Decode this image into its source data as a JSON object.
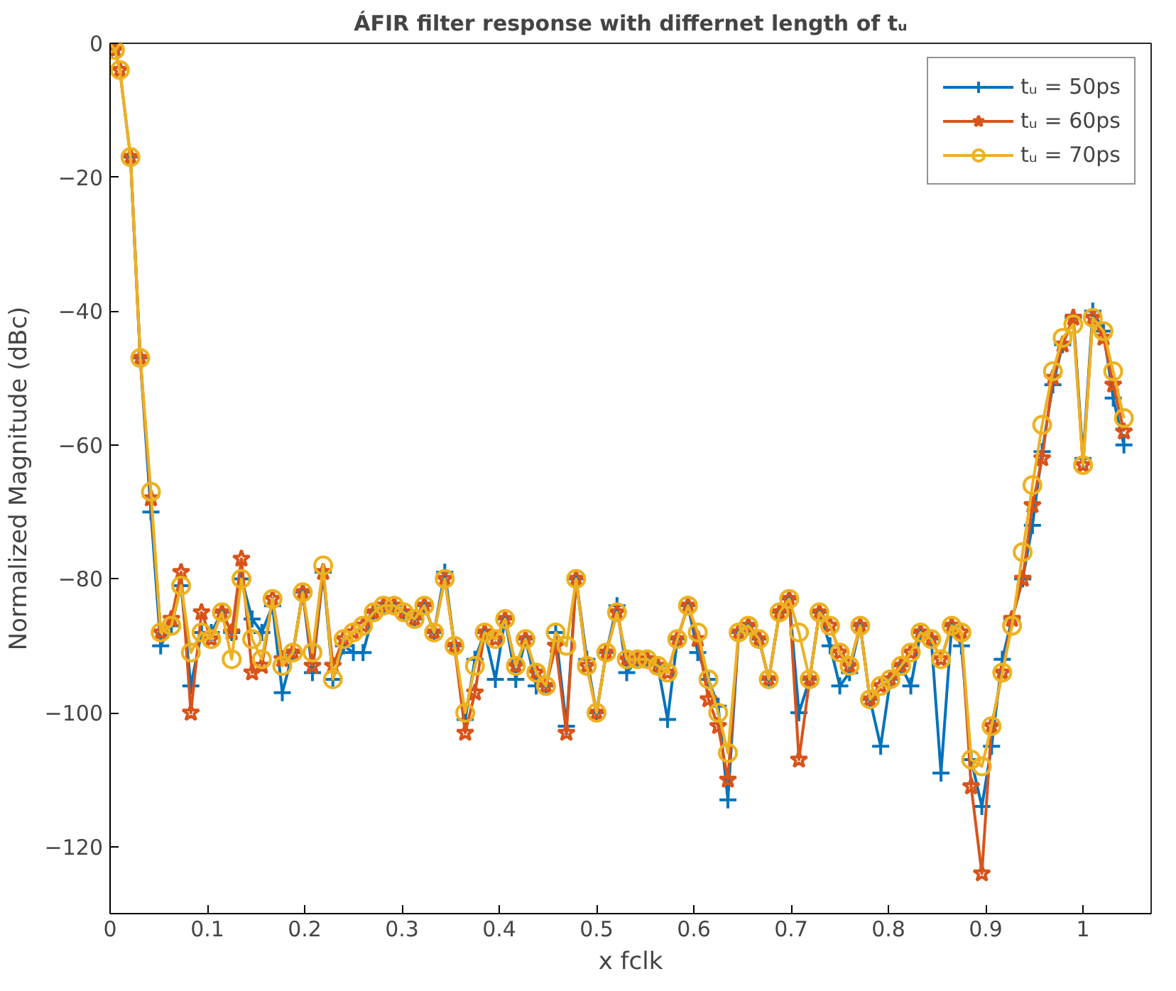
{
  "chart_data": {
    "type": "line",
    "title": "ÁFIR filter response with differnet length of tᵤ",
    "xlabel": "x fclk",
    "ylabel": "Normalized Magnitude (dBc)",
    "x": [
      0,
      0.005,
      0.01,
      0.021,
      0.031,
      0.042,
      0.052,
      0.063,
      0.073,
      0.083,
      0.094,
      0.104,
      0.115,
      0.125,
      0.135,
      0.146,
      0.156,
      0.167,
      0.177,
      0.188,
      0.198,
      0.208,
      0.219,
      0.229,
      0.24,
      0.25,
      0.26,
      0.271,
      0.281,
      0.292,
      0.302,
      0.313,
      0.323,
      0.333,
      0.344,
      0.354,
      0.365,
      0.375,
      0.385,
      0.396,
      0.406,
      0.417,
      0.427,
      0.438,
      0.448,
      0.458,
      0.469,
      0.479,
      0.49,
      0.5,
      0.51,
      0.521,
      0.531,
      0.542,
      0.552,
      0.563,
      0.573,
      0.583,
      0.594,
      0.604,
      0.615,
      0.625,
      0.635,
      0.646,
      0.656,
      0.667,
      0.677,
      0.688,
      0.698,
      0.708,
      0.719,
      0.729,
      0.74,
      0.75,
      0.76,
      0.771,
      0.781,
      0.792,
      0.802,
      0.813,
      0.823,
      0.833,
      0.844,
      0.854,
      0.865,
      0.875,
      0.885,
      0.896,
      0.906,
      0.917,
      0.927,
      0.938,
      0.948,
      0.958,
      0.969,
      0.979,
      0.99,
      1.0,
      1.01,
      1.021,
      1.031,
      1.042
    ],
    "series": [
      {
        "name": "tᵤ = 50ps",
        "color": "#0072bd",
        "marker": "cross",
        "x": [
          0.021,
          0.031,
          0.042,
          0.052,
          0.063,
          0.073,
          0.083,
          0.094,
          0.104,
          0.115,
          0.125,
          0.135,
          0.146,
          0.156,
          0.167,
          0.177,
          0.188,
          0.198,
          0.208,
          0.219,
          0.229,
          0.24,
          0.25,
          0.26,
          0.271,
          0.281,
          0.292,
          0.302,
          0.313,
          0.323,
          0.333,
          0.344,
          0.354,
          0.365,
          0.375,
          0.385,
          0.396,
          0.406,
          0.417,
          0.427,
          0.438,
          0.448,
          0.458,
          0.469,
          0.479,
          0.49,
          0.5,
          0.51,
          0.521,
          0.531,
          0.542,
          0.552,
          0.563,
          0.573,
          0.583,
          0.594,
          0.604,
          0.615,
          0.625,
          0.635,
          0.646,
          0.656,
          0.667,
          0.677,
          0.688,
          0.698,
          0.708,
          0.719,
          0.729,
          0.74,
          0.75,
          0.76,
          0.771,
          0.781,
          0.792,
          0.802,
          0.813,
          0.823,
          0.833,
          0.844,
          0.854,
          0.865,
          0.875,
          0.885,
          0.896,
          0.906,
          0.917,
          0.927,
          0.938,
          0.948,
          0.958,
          0.969,
          0.979,
          0.99,
          1.0,
          1.01,
          1.021,
          1.031,
          1.042
        ],
        "values": [
          -17,
          -47,
          -70,
          -90,
          -87,
          -81,
          -96,
          -88,
          -88,
          -85,
          -88,
          -80,
          -86,
          -88,
          -84,
          -97,
          -91,
          -82,
          -94,
          -79,
          -95,
          -90,
          -91,
          -91,
          -85,
          -84,
          -84,
          -85,
          -86,
          -84,
          -88,
          -79,
          -90,
          -101,
          -92,
          -88,
          -95,
          -86,
          -95,
          -89,
          -96,
          -96,
          -88,
          -102,
          -80,
          -92,
          -100,
          -91,
          -84,
          -94,
          -92,
          -92,
          -93,
          -101,
          -89,
          -84,
          -91,
          -95,
          -99,
          -113,
          -88,
          -87,
          -89,
          -95,
          -85,
          -83,
          -100,
          -95,
          -85,
          -90,
          -96,
          -94,
          -87,
          -98,
          -105,
          -95,
          -93,
          -96,
          -88,
          -89,
          -109,
          -87,
          -90,
          -107,
          -114,
          -105,
          -92,
          -86,
          -80,
          -72,
          -61,
          -51,
          -45,
          -41,
          -62,
          -40,
          -43,
          -53,
          -60
        ]
      },
      {
        "name": "tᵤ = 60ps",
        "color": "#d95319",
        "marker": "star",
        "values": [
          0,
          -1,
          -4,
          -17,
          -47,
          -68,
          -88,
          -86,
          -79,
          -100,
          -85,
          -89,
          -85,
          -88,
          -77,
          -94,
          -93,
          -83,
          -92,
          -91,
          -82,
          -93,
          -79,
          -93,
          -89,
          -88,
          -87,
          -85,
          -84,
          -84,
          -85,
          -86,
          -84,
          -88,
          -80,
          -90,
          -103,
          -97,
          -88,
          -89,
          -86,
          -93,
          -89,
          -94,
          -96,
          -90,
          -103,
          -80,
          -93,
          -100,
          -91,
          -85,
          -92,
          -92,
          -92,
          -93,
          -94,
          -89,
          -84,
          -89,
          -98,
          -102,
          -110,
          -88,
          -87,
          -89,
          -95,
          -85,
          -83,
          -107,
          -95,
          -85,
          -87,
          -91,
          -93,
          -87,
          -98,
          -96,
          -95,
          -93,
          -91,
          -88,
          -89,
          -92,
          -87,
          -88,
          -111,
          -124,
          -102,
          -94,
          -86,
          -80,
          -69,
          -62,
          -50,
          -45,
          -41,
          -63,
          -41,
          -44,
          -51,
          -58
        ]
      },
      {
        "name": "tᵤ = 70ps",
        "color": "#edb120",
        "marker": "circle",
        "values": [
          0,
          -1,
          -4,
          -17,
          -47,
          -67,
          -88,
          -87,
          -81,
          -91,
          -88,
          -89,
          -85,
          -92,
          -80,
          -89,
          -92,
          -83,
          -93,
          -91,
          -82,
          -91,
          -78,
          -95,
          -89,
          -88,
          -87,
          -85,
          -84,
          -84,
          -85,
          -86,
          -84,
          -88,
          -80,
          -90,
          -100,
          -93,
          -88,
          -89,
          -86,
          -93,
          -89,
          -94,
          -96,
          -88,
          -90,
          -80,
          -93,
          -100,
          -91,
          -85,
          -92,
          -92,
          -92,
          -93,
          -94,
          -89,
          -84,
          -88,
          -95,
          -100,
          -106,
          -88,
          -87,
          -89,
          -95,
          -85,
          -83,
          -88,
          -95,
          -85,
          -87,
          -91,
          -93,
          -87,
          -98,
          -96,
          -95,
          -93,
          -91,
          -88,
          -89,
          -92,
          -87,
          -88,
          -107,
          -108,
          -102,
          -94,
          -87,
          -76,
          -66,
          -57,
          -49,
          -44,
          -42,
          -63,
          -41,
          -43,
          -49,
          -56
        ]
      }
    ],
    "xlim": [
      0,
      1.07
    ],
    "ylim": [
      -130,
      0
    ],
    "xticks": [
      0,
      0.1,
      0.2,
      0.3,
      0.4,
      0.5,
      0.6,
      0.7,
      0.8,
      0.9,
      1
    ],
    "yticks": [
      -120,
      -100,
      -80,
      -60,
      -40,
      -20,
      0
    ],
    "grid": false,
    "legend": "top right",
    "line_style": "solid"
  }
}
